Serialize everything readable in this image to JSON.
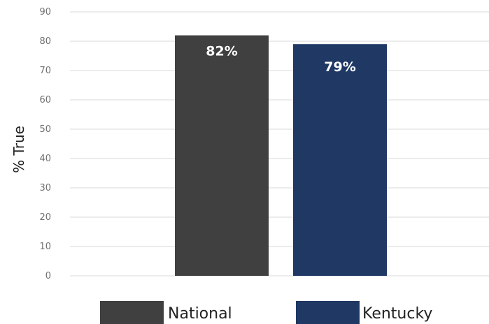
{
  "chart_data": {
    "type": "bar",
    "ylabel": "% True",
    "ylim": [
      0,
      90
    ],
    "y_ticks": [
      0,
      10,
      20,
      30,
      40,
      50,
      60,
      70,
      80,
      90
    ],
    "grid": true,
    "legend_position": "bottom",
    "categories": [
      "National",
      "Kentucky"
    ],
    "values": [
      82,
      79
    ],
    "data_labels": [
      "82%",
      "79%"
    ],
    "colors": [
      "#404040",
      "#1F3864"
    ],
    "legend": [
      {
        "label": "National",
        "color": "#404040"
      },
      {
        "label": "Kentucky",
        "color": "#1F3864"
      }
    ]
  }
}
